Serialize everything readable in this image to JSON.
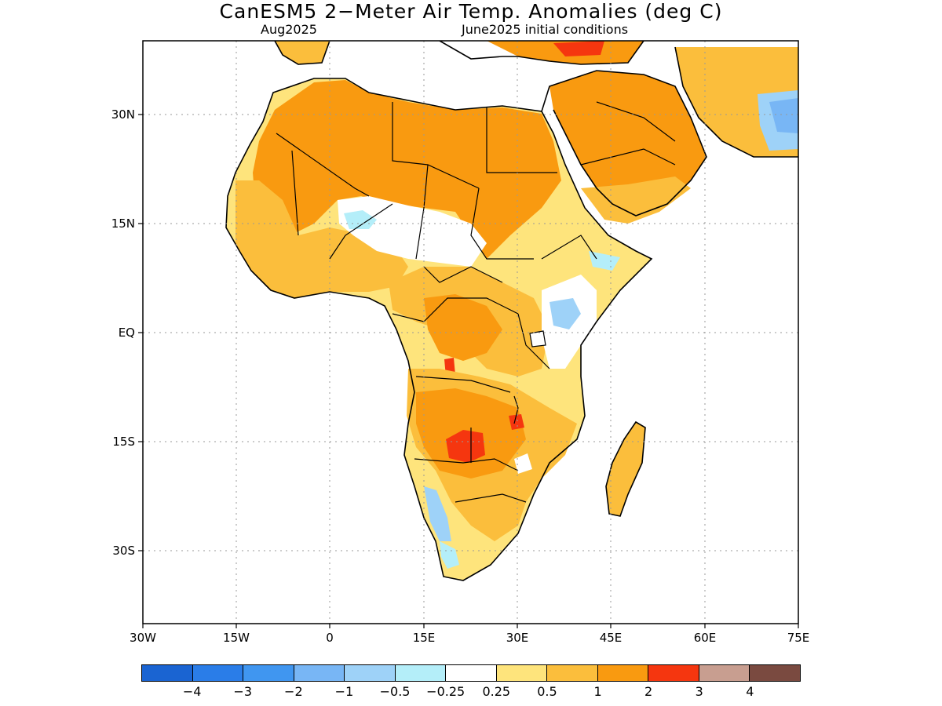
{
  "title": "CanESM5 2−Meter Air Temp. Anomalies (deg C)",
  "subtitle_left": "Aug2025",
  "subtitle_right": "June2025 initial conditions",
  "lat_labels": [
    "30N",
    "15N",
    "EQ",
    "15S",
    "30S"
  ],
  "lon_labels": [
    "30W",
    "15W",
    "0",
    "15E",
    "30E",
    "45E",
    "60E",
    "75E"
  ],
  "colorbar": {
    "colors": [
      "#1a64d2",
      "#2a7de8",
      "#4096f0",
      "#78b6f5",
      "#9ed2f8",
      "#b4eef9",
      "#ffffff",
      "#fee47c",
      "#fbbe3c",
      "#f99a10",
      "#f5360f",
      "#c89e90",
      "#7a4a40"
    ],
    "labels": [
      "−4",
      "−3",
      "−2",
      "−1",
      "−0.5",
      "−0.25",
      "0.25",
      "0.5",
      "1",
      "2",
      "3",
      "4"
    ]
  }
}
